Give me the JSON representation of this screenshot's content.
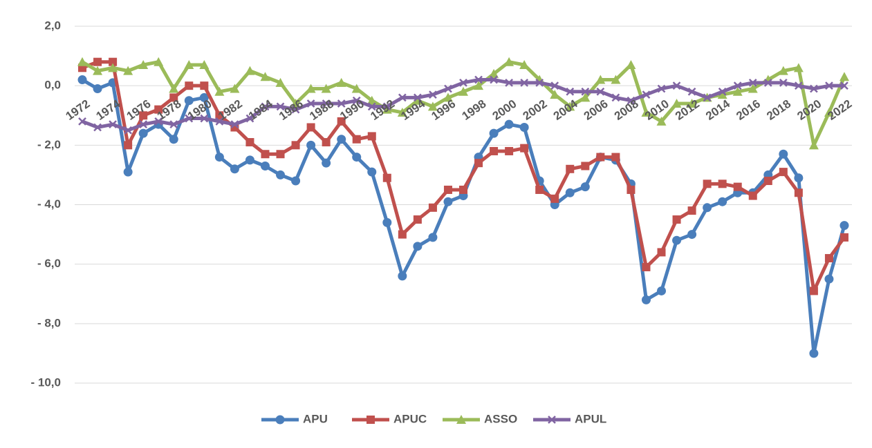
{
  "chart_data": {
    "type": "line",
    "x": [
      1972,
      1973,
      1974,
      1975,
      1976,
      1977,
      1978,
      1979,
      1980,
      1981,
      1982,
      1983,
      1984,
      1985,
      1986,
      1987,
      1988,
      1989,
      1990,
      1991,
      1992,
      1993,
      1994,
      1995,
      1996,
      1997,
      1998,
      1999,
      2000,
      2001,
      2002,
      2003,
      2004,
      2005,
      2006,
      2007,
      2008,
      2009,
      2010,
      2011,
      2012,
      2013,
      2014,
      2015,
      2016,
      2017,
      2018,
      2019,
      2020,
      2021,
      2022
    ],
    "xlim": [
      1971.5,
      2022.5
    ],
    "xticks": [
      1972,
      1974,
      1976,
      1978,
      1980,
      1982,
      1984,
      1986,
      1988,
      1990,
      1992,
      1994,
      1996,
      1998,
      2000,
      2002,
      2004,
      2006,
      2008,
      2010,
      2012,
      2014,
      2016,
      2018,
      2020,
      2022
    ],
    "ylim": [
      -10,
      2
    ],
    "yticks": [
      {
        "value": 2,
        "label": "2,0"
      },
      {
        "value": 0,
        "label": "0,0"
      },
      {
        "value": -2,
        "label": "- 2,0"
      },
      {
        "value": -4,
        "label": "- 4,0"
      },
      {
        "value": -6,
        "label": "- 6,0"
      },
      {
        "value": -8,
        "label": "- 8,0"
      },
      {
        "value": -10,
        "label": "- 10,0"
      }
    ],
    "grid": true,
    "legend": "bottom",
    "series": [
      {
        "name": "APU",
        "color": "#4a7ebb",
        "marker": "circle",
        "values": [
          0.2,
          -0.1,
          0.1,
          -2.9,
          -1.6,
          -1.3,
          -1.8,
          -0.5,
          -0.4,
          -2.4,
          -2.8,
          -2.5,
          -2.7,
          -3.0,
          -3.2,
          -2.0,
          -2.6,
          -1.8,
          -2.4,
          -2.9,
          -4.6,
          -6.4,
          -5.4,
          -5.1,
          -3.9,
          -3.7,
          -2.4,
          -1.6,
          -1.3,
          -1.4,
          -3.2,
          -4.0,
          -3.6,
          -3.4,
          -2.4,
          -2.5,
          -3.3,
          -7.2,
          -6.9,
          -5.2,
          -5.0,
          -4.1,
          -3.9,
          -3.6,
          -3.6,
          -3.0,
          -2.3,
          -3.1,
          -9.0,
          -6.5,
          -4.7
        ]
      },
      {
        "name": "APUC",
        "color": "#c0504d",
        "marker": "square",
        "values": [
          0.6,
          0.8,
          0.8,
          -2.0,
          -1.0,
          -0.8,
          -0.4,
          0.0,
          0.0,
          -1.0,
          -1.4,
          -1.9,
          -2.3,
          -2.3,
          -2.0,
          -1.4,
          -1.9,
          -1.2,
          -1.8,
          -1.7,
          -3.1,
          -5.0,
          -4.5,
          -4.1,
          -3.5,
          -3.5,
          -2.6,
          -2.2,
          -2.2,
          -2.1,
          -3.5,
          -3.8,
          -2.8,
          -2.7,
          -2.4,
          -2.4,
          -3.5,
          -6.1,
          -5.6,
          -4.5,
          -4.2,
          -3.3,
          -3.3,
          -3.4,
          -3.7,
          -3.2,
          -2.9,
          -3.6,
          -6.9,
          -5.8,
          -5.1
        ]
      },
      {
        "name": "ASSO",
        "color": "#9bbb59",
        "marker": "triangle",
        "values": [
          0.8,
          0.5,
          0.6,
          0.5,
          0.7,
          0.8,
          -0.1,
          0.7,
          0.7,
          -0.2,
          -0.1,
          0.5,
          0.3,
          0.1,
          -0.6,
          -0.1,
          -0.1,
          0.1,
          -0.1,
          -0.5,
          -0.8,
          -0.9,
          -0.5,
          -0.7,
          -0.4,
          -0.2,
          0.0,
          0.4,
          0.8,
          0.7,
          0.2,
          -0.3,
          -0.7,
          -0.4,
          0.2,
          0.2,
          0.7,
          -0.9,
          -1.2,
          -0.6,
          -0.6,
          -0.4,
          -0.3,
          -0.2,
          -0.1,
          0.2,
          0.5,
          0.6,
          -2.0,
          -0.9,
          0.3
        ]
      },
      {
        "name": "APUL",
        "color": "#8064a2",
        "marker": "x",
        "values": [
          -1.2,
          -1.4,
          -1.3,
          -1.5,
          -1.3,
          -1.2,
          -1.3,
          -1.1,
          -1.1,
          -1.2,
          -1.3,
          -1.1,
          -0.7,
          -0.7,
          -0.8,
          -0.6,
          -0.6,
          -0.6,
          -0.5,
          -0.7,
          -0.7,
          -0.4,
          -0.4,
          -0.3,
          -0.1,
          0.1,
          0.2,
          0.2,
          0.1,
          0.1,
          0.1,
          0.0,
          -0.2,
          -0.2,
          -0.2,
          -0.4,
          -0.5,
          -0.3,
          -0.1,
          0.0,
          -0.2,
          -0.4,
          -0.2,
          0.0,
          0.1,
          0.1,
          0.1,
          0.0,
          -0.1,
          0.0,
          0.0
        ]
      }
    ]
  }
}
